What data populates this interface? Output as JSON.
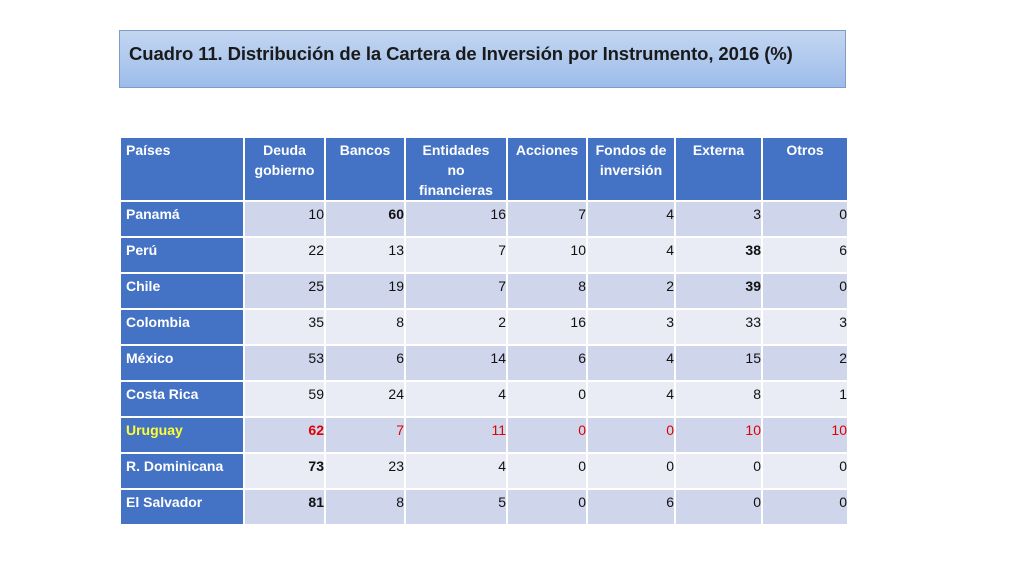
{
  "title": "Cuadro 11. Distribución de la Cartera de Inversión por Instrumento, 2016 (%)",
  "table": {
    "headers": [
      [
        "Países"
      ],
      [
        "Deuda",
        "gobierno"
      ],
      [
        "Bancos"
      ],
      [
        "Entidades",
        "no",
        "financieras"
      ],
      [
        "Acciones"
      ],
      [
        "Fondos de",
        "inversión"
      ],
      [
        "Externa"
      ],
      [
        "Otros"
      ]
    ],
    "rows": [
      {
        "country": "Panamá",
        "values": [
          "10",
          "60",
          "16",
          "7",
          "4",
          "3",
          "0"
        ],
        "bold": [
          false,
          true,
          false,
          false,
          false,
          false,
          false
        ]
      },
      {
        "country": "Perú",
        "values": [
          "22",
          "13",
          "7",
          "10",
          "4",
          "38",
          "6"
        ],
        "bold": [
          false,
          false,
          false,
          false,
          false,
          true,
          false
        ]
      },
      {
        "country": "Chile",
        "values": [
          "25",
          "19",
          "7",
          "8",
          "2",
          "39",
          "0"
        ],
        "bold": [
          false,
          false,
          false,
          false,
          false,
          true,
          false
        ]
      },
      {
        "country": "Colombia",
        "values": [
          "35",
          "8",
          "2",
          "16",
          "3",
          "33",
          "3"
        ],
        "bold": [
          false,
          false,
          false,
          false,
          false,
          false,
          false
        ]
      },
      {
        "country": "México",
        "values": [
          "53",
          "6",
          "14",
          "6",
          "4",
          "15",
          "2"
        ],
        "bold": [
          false,
          false,
          false,
          false,
          false,
          false,
          false
        ]
      },
      {
        "country": "Costa Rica",
        "values": [
          "59",
          "24",
          "4",
          "0",
          "4",
          "8",
          "1"
        ],
        "bold": [
          false,
          false,
          false,
          false,
          false,
          false,
          false
        ]
      },
      {
        "country": "Uruguay",
        "values": [
          "62",
          "7",
          "11",
          "0",
          "0",
          "10",
          "10"
        ],
        "bold": [
          true,
          false,
          false,
          false,
          false,
          false,
          false
        ],
        "highlight": true
      },
      {
        "country": "R. Dominicana",
        "values": [
          "73",
          "23",
          "4",
          "0",
          "0",
          "0",
          "0"
        ],
        "bold": [
          true,
          false,
          false,
          false,
          false,
          false,
          false
        ]
      },
      {
        "country": "El Salvador",
        "values": [
          "81",
          "8",
          "5",
          "0",
          "6",
          "0",
          "0"
        ],
        "bold": [
          true,
          false,
          false,
          false,
          false,
          false,
          false
        ]
      }
    ]
  },
  "colors": {
    "header_bg": "#4472c4",
    "row_odd_bg": "#cfd5ea",
    "row_even_bg": "#e9ebf5",
    "highlight_value": "#e00000",
    "highlight_country": "#ffff33"
  }
}
